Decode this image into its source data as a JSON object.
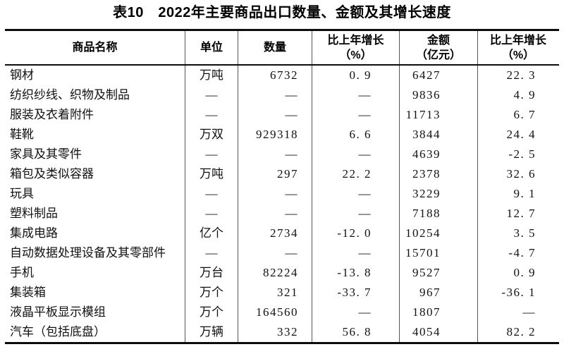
{
  "title": "表10　2022年主要商品出口数量、金额及其增长速度",
  "table": {
    "headers": [
      {
        "label": "商品名称",
        "sub": ""
      },
      {
        "label": "单位",
        "sub": ""
      },
      {
        "label": "数量",
        "sub": ""
      },
      {
        "label": "比上年增长",
        "sub": "（%）"
      },
      {
        "label": "金额",
        "sub": "（亿元）"
      },
      {
        "label": "比上年增长",
        "sub": "（%）"
      }
    ],
    "rows": [
      [
        "钢材",
        "万吨",
        "6732",
        "0. 9",
        "6427",
        "22. 3"
      ],
      [
        "纺织纱线、织物及制品",
        "—",
        "—",
        "—",
        "9836",
        "4. 9"
      ],
      [
        "服装及衣着附件",
        "—",
        "—",
        "—",
        "11713",
        "6. 7"
      ],
      [
        "鞋靴",
        "万双",
        "929318",
        "6. 6",
        "3844",
        "24. 4"
      ],
      [
        "家具及其零件",
        "—",
        "—",
        "—",
        "4639",
        "-2. 5"
      ],
      [
        "箱包及类似容器",
        "万吨",
        "297",
        "22. 2",
        "2378",
        "32. 6"
      ],
      [
        "玩具",
        "—",
        "—",
        "—",
        "3229",
        "9. 1"
      ],
      [
        "塑料制品",
        "—",
        "—",
        "—",
        "7188",
        "12. 7"
      ],
      [
        "集成电路",
        "亿个",
        "2734",
        "-12. 0",
        "10254",
        "3. 5"
      ],
      [
        "自动数据处理设备及其零部件",
        "—",
        "—",
        "—",
        "15701",
        "-4. 7"
      ],
      [
        "手机",
        "万台",
        "82224",
        "-13. 8",
        "9527",
        "0. 9"
      ],
      [
        "集装箱",
        "万个",
        "321",
        "-33. 7",
        "967",
        "-36. 1"
      ],
      [
        "液晶平板显示模组",
        "万个",
        "164560",
        "—",
        "1807",
        "—"
      ],
      [
        "汽车（包括底盘）",
        "万辆",
        "332",
        "56. 8",
        "4054",
        "82. 2"
      ]
    ],
    "colors": {
      "text": "#111111",
      "rule_heavy": "#0d0d0d",
      "rule_vertical": "#555555",
      "background": "#ffffff"
    }
  }
}
